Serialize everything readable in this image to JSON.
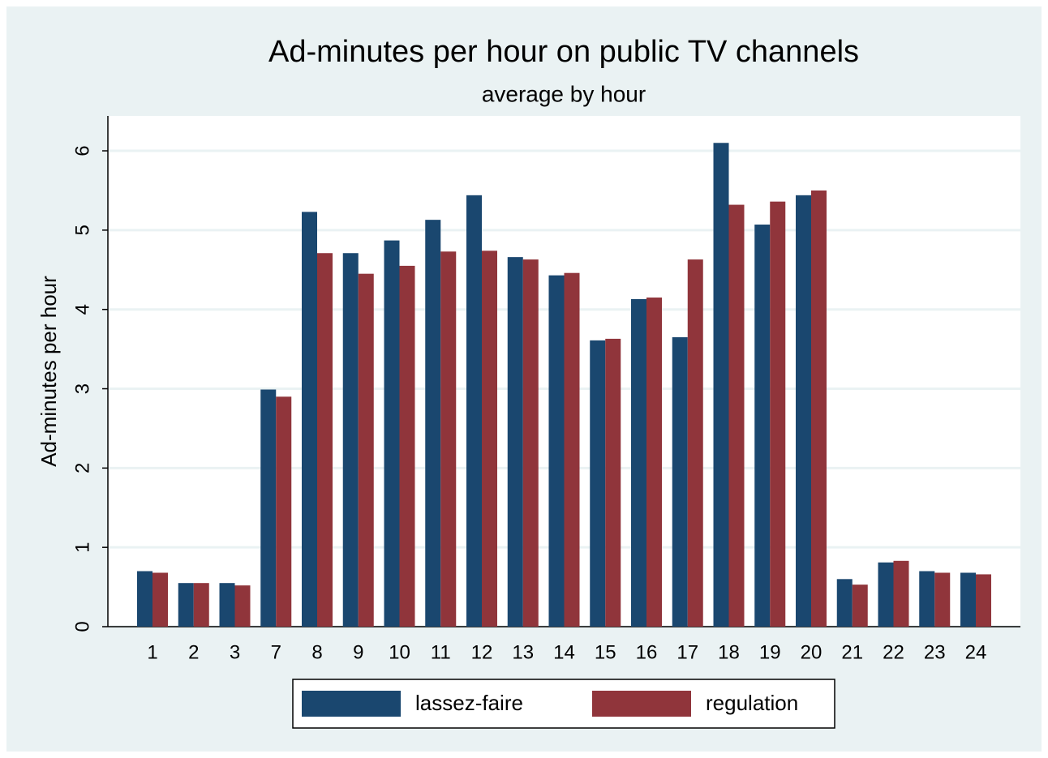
{
  "chart_data": {
    "type": "bar",
    "title": "Ad-minutes per hour on public TV channels",
    "subtitle": "average by hour",
    "y_label": "Ad-minutes per hour",
    "categories": [
      "1",
      "2",
      "3",
      "7",
      "8",
      "9",
      "10",
      "11",
      "12",
      "13",
      "14",
      "15",
      "16",
      "17",
      "18",
      "19",
      "20",
      "21",
      "22",
      "23",
      "24"
    ],
    "series": [
      {
        "name": "lassez-faire",
        "color": "#1a476f",
        "values": [
          0.7,
          0.55,
          0.55,
          2.99,
          5.23,
          4.71,
          4.87,
          5.13,
          5.44,
          4.66,
          4.43,
          3.61,
          4.13,
          3.65,
          6.1,
          5.07,
          5.44,
          0.6,
          0.81,
          0.7,
          0.68
        ]
      },
      {
        "name": "regulation",
        "color": "#90353b",
        "values": [
          0.68,
          0.55,
          0.52,
          2.9,
          4.71,
          4.45,
          4.55,
          4.73,
          4.74,
          4.63,
          4.46,
          3.63,
          4.15,
          4.63,
          5.32,
          5.36,
          5.5,
          0.53,
          0.83,
          0.68,
          0.66
        ]
      }
    ],
    "ylim": [
      0,
      6.44
    ],
    "yticks": [
      0,
      1,
      2,
      3,
      4,
      5,
      6
    ],
    "grid": true,
    "legend": "bottom"
  }
}
